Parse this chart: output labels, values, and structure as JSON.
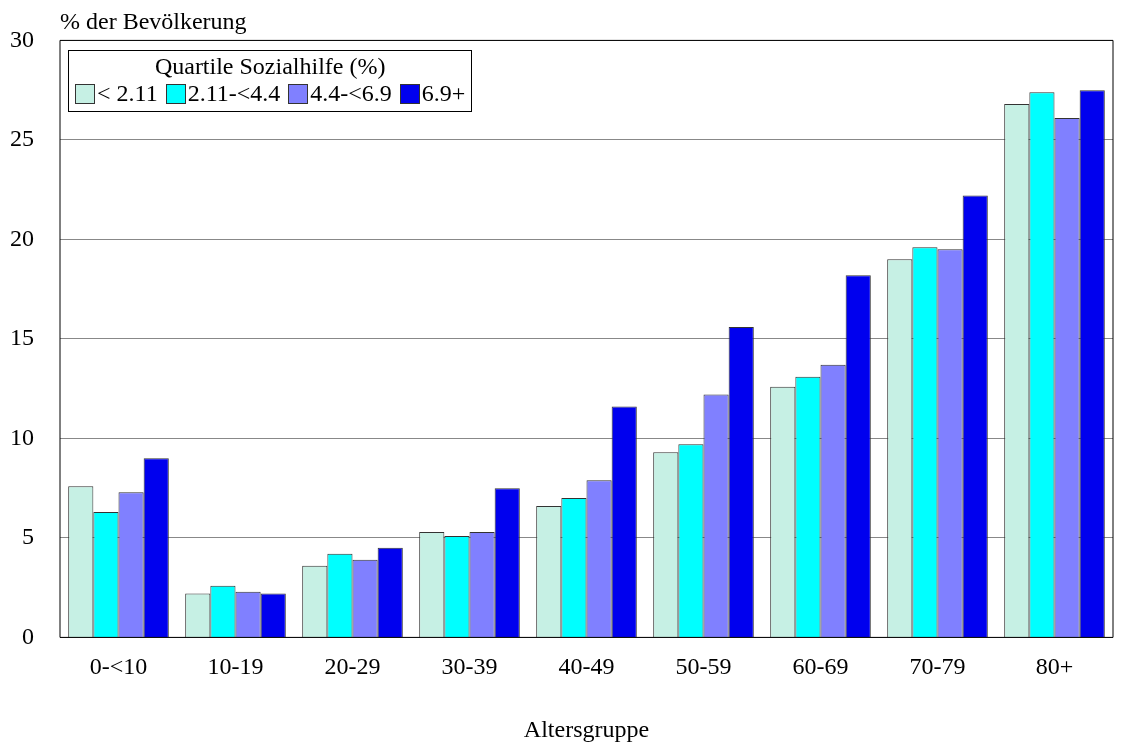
{
  "chart_data": {
    "type": "bar",
    "xlabel": "Altersgruppe",
    "ylabel": "% der Bevölkerung",
    "legend_title": "Quartile Sozialhilfe (%)",
    "legend": "top left",
    "grid": "y",
    "categories": [
      "0-<10",
      "10-19",
      "20-29",
      "30-39",
      "40-49",
      "50-59",
      "60-69",
      "70-79",
      "80+"
    ],
    "ylim": [
      0,
      30
    ],
    "yticks": [
      0,
      5,
      10,
      15,
      20,
      25,
      30
    ],
    "series": [
      {
        "name": "< 2.11",
        "color": "#c6f0e4",
        "values": [
          7.6,
          2.2,
          3.6,
          5.3,
          6.6,
          9.3,
          12.6,
          19.0,
          26.8
        ]
      },
      {
        "name": "2.11-<4.4",
        "color": "#00ffff",
        "values": [
          6.3,
          2.6,
          4.2,
          5.1,
          7.0,
          9.7,
          13.1,
          19.6,
          27.4
        ]
      },
      {
        "name": "4.4-<6.9",
        "color": "#8080ff",
        "values": [
          7.3,
          2.3,
          3.9,
          5.3,
          7.9,
          12.2,
          13.7,
          19.5,
          26.1
        ]
      },
      {
        "name": "6.9+",
        "color": "#0000ee",
        "values": [
          9.0,
          2.2,
          4.5,
          7.5,
          11.6,
          15.6,
          18.2,
          22.2,
          27.5
        ]
      }
    ]
  }
}
